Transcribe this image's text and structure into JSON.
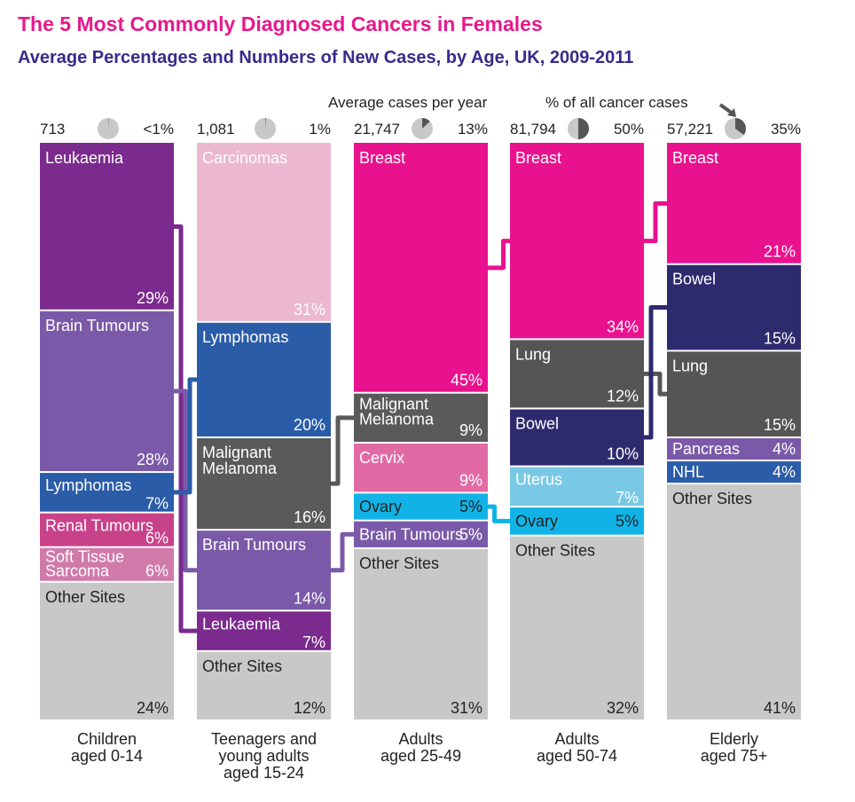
{
  "title": "The 5 Most Commonly Diagnosed Cancers in Females",
  "subtitle": "Average Percentages and Numbers of New Cases, by Age, UK, 2009-2011",
  "header_labels": {
    "cases_per_year": "Average cases per year",
    "pct_all_cases": "% of all cancer cases"
  },
  "colors": {
    "leukaemia": "#7b2a8e",
    "brain_tumours": "#7a5aa8",
    "lymphomas": "#2a5ca8",
    "renal": "#c8428a",
    "soft_tissue": "#d07aaa",
    "other": "#c8c8c8",
    "carcinomas": "#ecb8d0",
    "melanoma": "#5a5a5a",
    "breast": "#e9128e",
    "cervix": "#e16aa5",
    "ovary": "#11b3e6",
    "lung": "#555555",
    "bowel": "#2e2a6e",
    "uterus": "#79c9e6",
    "pancreas": "#7a5aa8",
    "nhl": "#2a5ca8",
    "pie_bg": "#c8c8c8",
    "pie_fill": "#555555"
  },
  "chart_data": {
    "type": "stacked-bar",
    "title": "The 5 Most Commonly Diagnosed Cancers in Females",
    "subtitle": "Average Percentages and Numbers of New Cases, by Age, UK, 2009-2011",
    "ylim": [
      0,
      100
    ],
    "groups": [
      {
        "label_lines": [
          "Children",
          "aged 0-14"
        ],
        "cases": "713",
        "share_label": "<1%",
        "share_value": 0.5,
        "segments": [
          {
            "name": "Leukaemia",
            "label": "29%",
            "value": 29,
            "color": "leukaemia",
            "layout": "wide"
          },
          {
            "name": "Brain Tumours",
            "label": "28%",
            "value": 28,
            "color": "brain_tumours",
            "layout": "wide"
          },
          {
            "name": "Lymphomas",
            "label": "7%",
            "value": 7,
            "color": "lymphomas",
            "layout": "stack"
          },
          {
            "name": "Renal Tumours",
            "label": "6%",
            "value": 6,
            "color": "renal",
            "layout": "stack"
          },
          {
            "name": "Soft Tissue Sarcoma",
            "label": "6%",
            "value": 6,
            "color": "soft_tissue",
            "layout": "sarcoma"
          },
          {
            "name": "Other Sites",
            "label": "24%",
            "value": 24,
            "color": "other",
            "layout": "wide"
          }
        ]
      },
      {
        "label_lines": [
          "Teenagers and",
          "young adults",
          "aged 15-24"
        ],
        "cases": "1,081",
        "share_label": "1%",
        "share_value": 1,
        "segments": [
          {
            "name": "Carcinomas",
            "label": "31%",
            "value": 31,
            "color": "carcinomas",
            "layout": "wide"
          },
          {
            "name": "Lymphomas",
            "label": "20%",
            "value": 20,
            "color": "lymphomas",
            "layout": "wide"
          },
          {
            "name": "Malignant Melanoma",
            "label": "16%",
            "value": 16,
            "color": "melanoma",
            "layout": "melanoma-wide"
          },
          {
            "name": "Brain Tumours",
            "label": "14%",
            "value": 14,
            "color": "brain_tumours",
            "layout": "wide"
          },
          {
            "name": "Leukaemia",
            "label": "7%",
            "value": 7,
            "color": "leukaemia",
            "layout": "stack"
          },
          {
            "name": "Other Sites",
            "label": "12%",
            "value": 12,
            "color": "other",
            "layout": "wide"
          }
        ]
      },
      {
        "label_lines": [
          "Adults",
          "aged 25-49"
        ],
        "cases": "21,747",
        "share_label": "13%",
        "share_value": 13,
        "segments": [
          {
            "name": "Breast",
            "label": "45%",
            "value": 45,
            "color": "breast",
            "layout": "wide"
          },
          {
            "name": "Malignant Melanoma",
            "label": "9%",
            "value": 9,
            "color": "melanoma",
            "layout": "melanoma-short"
          },
          {
            "name": "Cervix",
            "label": "9%",
            "value": 9,
            "color": "cervix",
            "layout": "wide"
          },
          {
            "name": "Ovary",
            "label": "5%",
            "value": 5,
            "color": "ovary",
            "layout": "inline",
            "text_color": "#222222"
          },
          {
            "name": "Brain Tumours",
            "label": "5%",
            "value": 5,
            "color": "brain_tumours",
            "layout": "inline"
          },
          {
            "name": "Other Sites",
            "label": "31%",
            "value": 31,
            "color": "other",
            "layout": "wide"
          }
        ]
      },
      {
        "label_lines": [
          "Adults",
          "aged 50-74"
        ],
        "cases": "81,794",
        "share_label": "50%",
        "share_value": 50,
        "segments": [
          {
            "name": "Breast",
            "label": "34%",
            "value": 34,
            "color": "breast",
            "layout": "wide"
          },
          {
            "name": "Lung",
            "label": "12%",
            "value": 12,
            "color": "lung",
            "layout": "wide"
          },
          {
            "name": "Bowel",
            "label": "10%",
            "value": 10,
            "color": "bowel",
            "layout": "wide"
          },
          {
            "name": "Uterus",
            "label": "7%",
            "value": 7,
            "color": "uterus",
            "layout": "stack"
          },
          {
            "name": "Ovary",
            "label": "5%",
            "value": 5,
            "color": "ovary",
            "layout": "inline",
            "text_color": "#222222"
          },
          {
            "name": "Other Sites",
            "label": "32%",
            "value": 32,
            "color": "other",
            "layout": "wide"
          }
        ]
      },
      {
        "label_lines": [
          "Elderly",
          "aged 75+"
        ],
        "cases": "57,221",
        "share_label": "35%",
        "share_value": 35,
        "segments": [
          {
            "name": "Breast",
            "label": "21%",
            "value": 21,
            "color": "breast",
            "layout": "wide"
          },
          {
            "name": "Bowel",
            "label": "15%",
            "value": 15,
            "color": "bowel",
            "layout": "wide"
          },
          {
            "name": "Lung",
            "label": "15%",
            "value": 15,
            "color": "lung",
            "layout": "wide"
          },
          {
            "name": "Pancreas",
            "label": "4%",
            "value": 4,
            "color": "pancreas",
            "layout": "inline"
          },
          {
            "name": "NHL",
            "label": "4%",
            "value": 4,
            "color": "nhl",
            "layout": "inline"
          },
          {
            "name": "Other Sites",
            "label": "41%",
            "value": 41,
            "color": "other",
            "layout": "wide"
          }
        ]
      }
    ],
    "links": [
      {
        "name": "Leukaemia",
        "from_group": 0,
        "to_group": 1,
        "color": "leukaemia"
      },
      {
        "name": "Brain Tumours",
        "from_group": 0,
        "to_group": 1,
        "color": "brain_tumours"
      },
      {
        "name": "Lymphomas",
        "from_group": 0,
        "to_group": 1,
        "color": "lymphomas"
      },
      {
        "name": "Malignant Melanoma",
        "from_group": 1,
        "to_group": 2,
        "color": "melanoma"
      },
      {
        "name": "Brain Tumours",
        "from_group": 1,
        "to_group": 2,
        "color": "brain_tumours"
      },
      {
        "name": "Breast",
        "from_group": 2,
        "to_group": 3,
        "color": "breast"
      },
      {
        "name": "Ovary",
        "from_group": 2,
        "to_group": 3,
        "color": "ovary"
      },
      {
        "name": "Breast",
        "from_group": 3,
        "to_group": 4,
        "color": "breast"
      },
      {
        "name": "Lung",
        "from_group": 3,
        "to_group": 4,
        "color": "lung"
      },
      {
        "name": "Bowel",
        "from_group": 3,
        "to_group": 4,
        "color": "bowel"
      }
    ]
  }
}
